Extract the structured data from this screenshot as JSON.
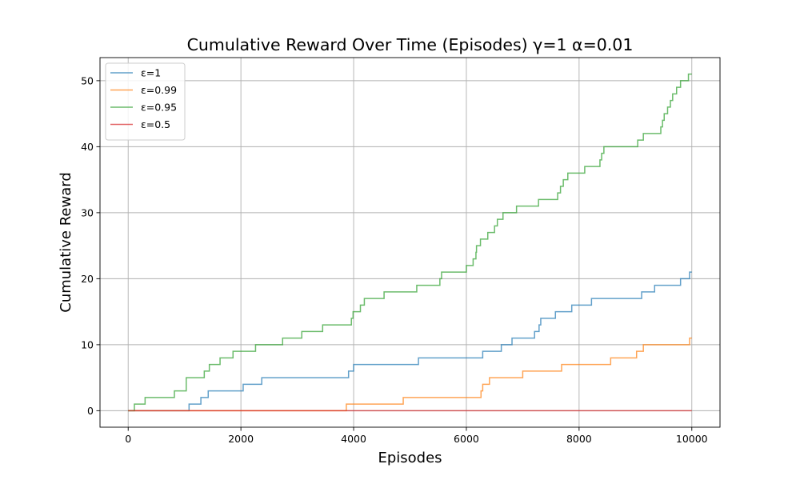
{
  "chart_data": {
    "type": "line",
    "title": "Cumulative Reward Over Time (Episodes) γ=1 α=0.01",
    "xlabel": "Episodes",
    "ylabel": "Cumulative Reward",
    "xlim": [
      -500,
      10500
    ],
    "ylim": [
      -2.5,
      53.5
    ],
    "xticks": [
      0,
      2000,
      4000,
      6000,
      8000,
      10000
    ],
    "yticks": [
      0,
      10,
      20,
      30,
      40,
      50
    ],
    "xtick_labels": [
      "0",
      "2000",
      "4000",
      "6000",
      "8000",
      "10000"
    ],
    "ytick_labels": [
      "0",
      "10",
      "20",
      "30",
      "40",
      "50"
    ],
    "grid": true,
    "legend_position": "top-left",
    "step": true,
    "series": [
      {
        "name": "ε=1",
        "color": "#1f77b4",
        "points": [
          [
            0,
            0
          ],
          [
            1080,
            1
          ],
          [
            1290,
            2
          ],
          [
            1420,
            3
          ],
          [
            2040,
            4
          ],
          [
            2370,
            5
          ],
          [
            3910,
            6
          ],
          [
            4000,
            7
          ],
          [
            5150,
            8
          ],
          [
            6290,
            9
          ],
          [
            6620,
            10
          ],
          [
            6810,
            11
          ],
          [
            7210,
            12
          ],
          [
            7290,
            13
          ],
          [
            7320,
            14
          ],
          [
            7580,
            15
          ],
          [
            7870,
            16
          ],
          [
            8220,
            17
          ],
          [
            9110,
            18
          ],
          [
            9340,
            19
          ],
          [
            9800,
            20
          ],
          [
            9960,
            21
          ],
          [
            10000,
            21
          ]
        ]
      },
      {
        "name": "ε=0.99",
        "color": "#ff7f0e",
        "points": [
          [
            0,
            0
          ],
          [
            3870,
            1
          ],
          [
            4880,
            2
          ],
          [
            6260,
            3
          ],
          [
            6290,
            4
          ],
          [
            6410,
            5
          ],
          [
            7000,
            6
          ],
          [
            7690,
            7
          ],
          [
            8560,
            8
          ],
          [
            9020,
            9
          ],
          [
            9140,
            10
          ],
          [
            9960,
            11
          ],
          [
            10000,
            11
          ]
        ]
      },
      {
        "name": "ε=0.95",
        "color": "#2ca02c",
        "points": [
          [
            0,
            0
          ],
          [
            110,
            1
          ],
          [
            300,
            2
          ],
          [
            820,
            3
          ],
          [
            1030,
            5
          ],
          [
            1350,
            6
          ],
          [
            1440,
            7
          ],
          [
            1630,
            8
          ],
          [
            1860,
            9
          ],
          [
            2260,
            10
          ],
          [
            2740,
            11
          ],
          [
            3080,
            12
          ],
          [
            3450,
            13
          ],
          [
            3960,
            14
          ],
          [
            3990,
            15
          ],
          [
            4120,
            16
          ],
          [
            4190,
            17
          ],
          [
            4540,
            18
          ],
          [
            5120,
            19
          ],
          [
            5530,
            20
          ],
          [
            5560,
            21
          ],
          [
            6000,
            22
          ],
          [
            6120,
            23
          ],
          [
            6170,
            24
          ],
          [
            6180,
            25
          ],
          [
            6250,
            26
          ],
          [
            6380,
            27
          ],
          [
            6500,
            28
          ],
          [
            6550,
            29
          ],
          [
            6650,
            30
          ],
          [
            6890,
            31
          ],
          [
            7280,
            32
          ],
          [
            7620,
            33
          ],
          [
            7670,
            34
          ],
          [
            7720,
            35
          ],
          [
            7800,
            36
          ],
          [
            8100,
            37
          ],
          [
            8370,
            38
          ],
          [
            8400,
            39
          ],
          [
            8440,
            40
          ],
          [
            9040,
            41
          ],
          [
            9140,
            42
          ],
          [
            9450,
            43
          ],
          [
            9480,
            44
          ],
          [
            9510,
            45
          ],
          [
            9570,
            46
          ],
          [
            9620,
            47
          ],
          [
            9660,
            48
          ],
          [
            9730,
            49
          ],
          [
            9800,
            50
          ],
          [
            9940,
            51
          ],
          [
            10000,
            51
          ]
        ]
      },
      {
        "name": "ε=0.5",
        "color": "#d62728",
        "points": [
          [
            0,
            0
          ],
          [
            10000,
            0
          ]
        ]
      }
    ]
  }
}
